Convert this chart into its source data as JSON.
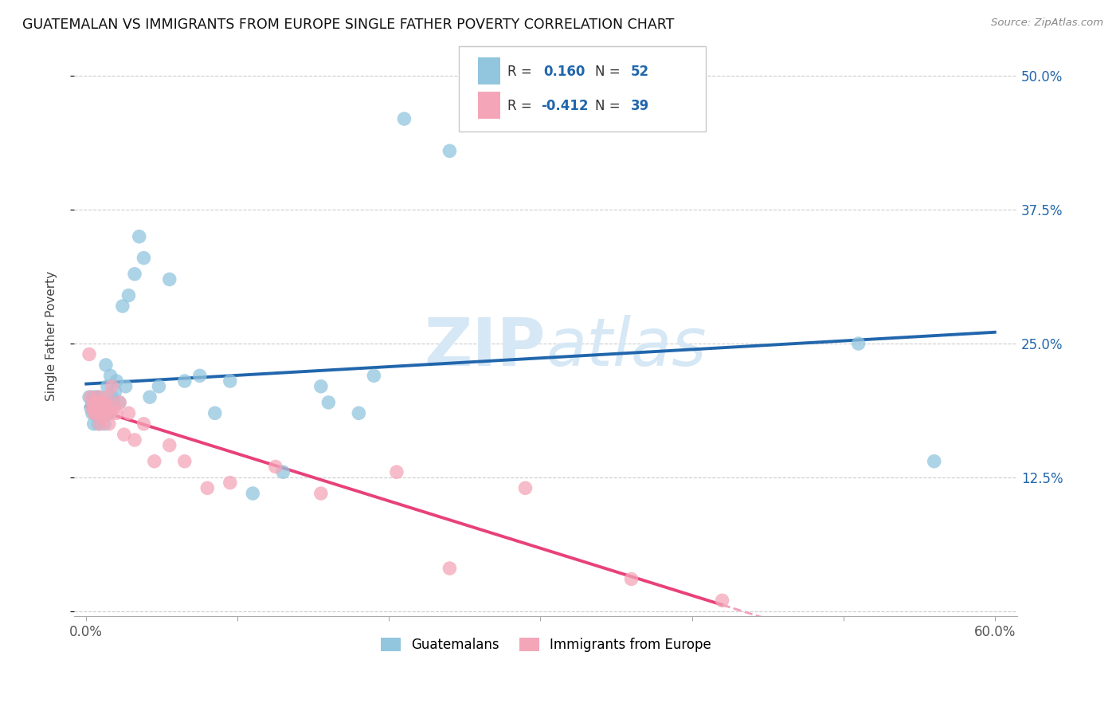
{
  "title": "GUATEMALAN VS IMMIGRANTS FROM EUROPE SINGLE FATHER POVERTY CORRELATION CHART",
  "source": "Source: ZipAtlas.com",
  "xlabel_guatemalan": "Guatemalans",
  "xlabel_europe": "Immigrants from Europe",
  "ylabel": "Single Father Poverty",
  "xlim": [
    0.0,
    0.6
  ],
  "ylim": [
    0.0,
    0.5
  ],
  "blue_R": 0.16,
  "blue_N": 52,
  "pink_R": -0.412,
  "pink_N": 39,
  "blue_color": "#92c5de",
  "pink_color": "#f4a6b8",
  "blue_line_color": "#2166ac",
  "pink_line_color": "#e8417a",
  "pink_dash_color": "#f0a0b8",
  "watermark_color": "#d6e8f5",
  "blue_scatter_x": [
    0.002,
    0.003,
    0.004,
    0.004,
    0.005,
    0.005,
    0.006,
    0.006,
    0.007,
    0.007,
    0.008,
    0.008,
    0.009,
    0.009,
    0.01,
    0.011,
    0.012,
    0.012,
    0.013,
    0.013,
    0.014,
    0.015,
    0.015,
    0.016,
    0.017,
    0.018,
    0.019,
    0.02,
    0.022,
    0.024,
    0.026,
    0.028,
    0.032,
    0.035,
    0.038,
    0.042,
    0.048,
    0.055,
    0.065,
    0.075,
    0.085,
    0.095,
    0.11,
    0.13,
    0.155,
    0.18,
    0.21,
    0.24,
    0.16,
    0.19,
    0.51,
    0.56
  ],
  "blue_scatter_y": [
    0.2,
    0.19,
    0.185,
    0.195,
    0.175,
    0.2,
    0.19,
    0.185,
    0.2,
    0.195,
    0.175,
    0.185,
    0.195,
    0.2,
    0.18,
    0.195,
    0.175,
    0.19,
    0.23,
    0.185,
    0.21,
    0.195,
    0.185,
    0.22,
    0.2,
    0.195,
    0.205,
    0.215,
    0.195,
    0.285,
    0.21,
    0.295,
    0.315,
    0.35,
    0.33,
    0.2,
    0.21,
    0.31,
    0.215,
    0.22,
    0.185,
    0.215,
    0.11,
    0.13,
    0.21,
    0.185,
    0.46,
    0.43,
    0.195,
    0.22,
    0.25,
    0.14
  ],
  "pink_scatter_x": [
    0.002,
    0.003,
    0.004,
    0.005,
    0.005,
    0.006,
    0.007,
    0.007,
    0.008,
    0.009,
    0.009,
    0.01,
    0.011,
    0.012,
    0.012,
    0.013,
    0.014,
    0.015,
    0.016,
    0.017,
    0.018,
    0.02,
    0.022,
    0.025,
    0.028,
    0.032,
    0.038,
    0.045,
    0.055,
    0.065,
    0.08,
    0.095,
    0.125,
    0.155,
    0.205,
    0.24,
    0.29,
    0.36,
    0.42
  ],
  "pink_scatter_y": [
    0.24,
    0.2,
    0.19,
    0.185,
    0.195,
    0.19,
    0.185,
    0.195,
    0.2,
    0.185,
    0.175,
    0.195,
    0.18,
    0.185,
    0.195,
    0.19,
    0.2,
    0.175,
    0.185,
    0.21,
    0.19,
    0.185,
    0.195,
    0.165,
    0.185,
    0.16,
    0.175,
    0.14,
    0.155,
    0.14,
    0.115,
    0.12,
    0.135,
    0.11,
    0.13,
    0.04,
    0.115,
    0.03,
    0.01
  ]
}
